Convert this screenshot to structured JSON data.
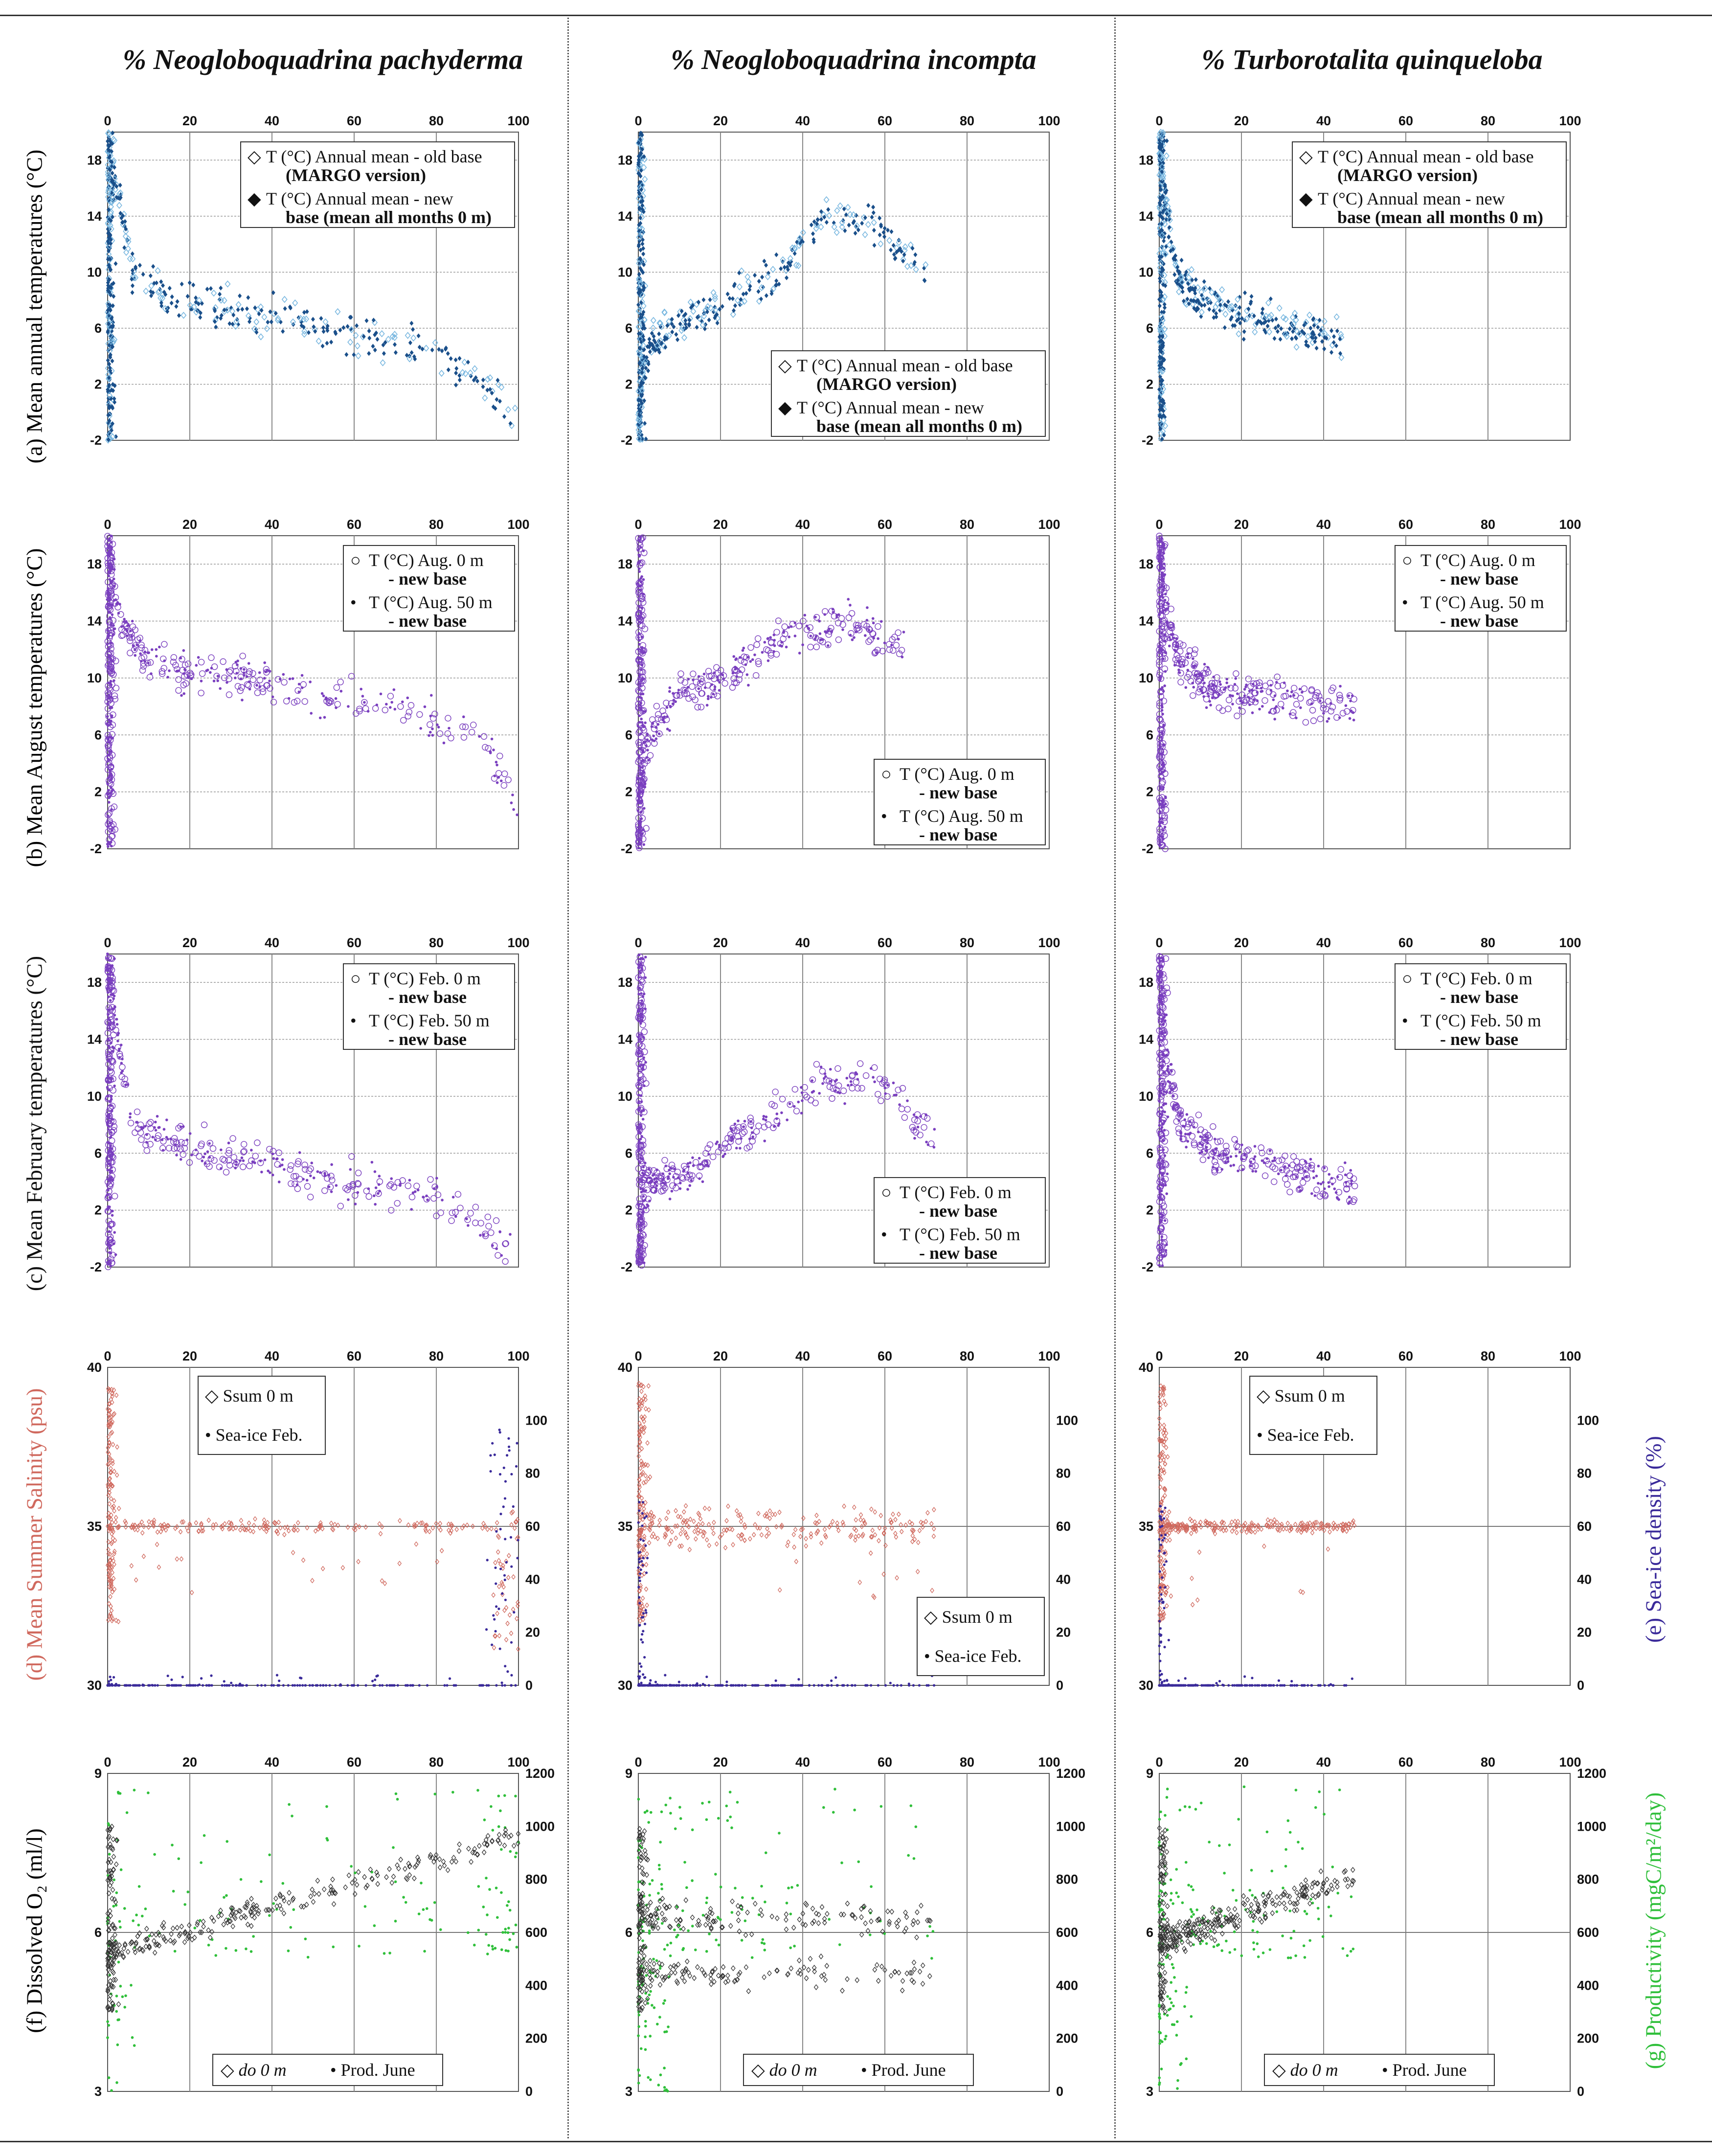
{
  "figure": {
    "columns": [
      "% Neogloboquadrina pachyderma",
      "% Neogloboquadrina incompta",
      "% Turborotalita quinqueloba"
    ],
    "row_labels": [
      "(a) Mean annual temperatures (°C)",
      "(b) Mean August temperatures (°C)",
      "(c) Mean February temperatures (°C)",
      "(d) Mean Summer Salinity (psu)",
      "(f) Dissolved O₂ (ml/l)"
    ],
    "right_labels": [
      "(e) Sea-ice density (%)",
      "(g) Productivity (mgC/m²/day)"
    ],
    "colors": {
      "annual_old": "#7ab8e0",
      "annual_new": "#1a4f8a",
      "purple": "#7a3fbf",
      "salinity": "#d0695e",
      "seaice": "#3a2a9a",
      "oxygen": "#333333",
      "productivity": "#2fbf3a",
      "band": "#e8e8e8"
    }
  },
  "chart_data": [
    {
      "type": "scatter",
      "row": "a",
      "title": "Mean annual temperatures",
      "xlabel": "%",
      "ylabel": "(a) Mean annual temperatures (°C)",
      "xlim": [
        0,
        100
      ],
      "ylim": [
        -2,
        20
      ],
      "xticks": [
        "0",
        "20",
        "40",
        "60",
        "80",
        "100"
      ],
      "yticks": [
        "-2",
        "2",
        "6",
        "10",
        "14",
        "18"
      ],
      "band": [
        6,
        10
      ],
      "legend": [
        {
          "symbol": "◇",
          "text": "T (°C) Annual mean - old base",
          "sub": "(MARGO version)"
        },
        {
          "symbol": "◆",
          "text": "T (°C)  Annual  mean - new",
          "sub": "base (mean all months  0 m)"
        }
      ],
      "series": [
        {
          "name": "T (°C) Annual mean - old base (MARGO version)",
          "color": "#7ab8e0"
        },
        {
          "name": "T (°C) Annual mean - new base (mean all months 0 m)",
          "color": "#1a4f8a"
        }
      ],
      "trends": [
        [
          [
            0,
            19
          ],
          [
            3,
            15
          ],
          [
            6,
            10
          ],
          [
            15,
            8
          ],
          [
            40,
            7
          ],
          [
            60,
            5.5
          ],
          [
            80,
            4.5
          ],
          [
            95,
            1
          ],
          [
            100,
            -1
          ]
        ],
        [
          [
            0,
            -1
          ],
          [
            1,
            3
          ],
          [
            3,
            5
          ],
          [
            8,
            6
          ],
          [
            20,
            7.5
          ],
          [
            35,
            10
          ],
          [
            45,
            14
          ],
          [
            55,
            14
          ],
          [
            70,
            10
          ]
        ],
        [
          [
            0,
            19
          ],
          [
            2,
            14
          ],
          [
            4,
            10
          ],
          [
            10,
            8
          ],
          [
            20,
            7
          ],
          [
            35,
            6
          ],
          [
            45,
            5
          ]
        ]
      ]
    },
    {
      "type": "scatter",
      "row": "b",
      "title": "Mean August temperatures",
      "xlabel": "%",
      "ylabel": "(b) Mean August temperatures (°C)",
      "xlim": [
        0,
        100
      ],
      "ylim": [
        -2,
        20
      ],
      "xticks": [
        "0",
        "20",
        "40",
        "60",
        "80",
        "100"
      ],
      "yticks": [
        "-2",
        "2",
        "6",
        "10",
        "14",
        "18"
      ],
      "band": [
        6,
        10
      ],
      "legend": [
        {
          "symbol": "○",
          "text": "T (°C) Aug. 0 m",
          "sub": "- new base"
        },
        {
          "symbol": "•",
          "text": "T (°C) Aug. 50 m",
          "sub": "- new base"
        }
      ],
      "series": [
        {
          "name": "T (°C) Aug. 0 m - new base",
          "color": "#7a3fbf"
        },
        {
          "name": "T (°C) Aug. 50 m - new base",
          "color": "#7a3fbf"
        }
      ],
      "trends": [
        [
          [
            0,
            19
          ],
          [
            3,
            14
          ],
          [
            10,
            11
          ],
          [
            30,
            10
          ],
          [
            50,
            9
          ],
          [
            70,
            8
          ],
          [
            90,
            6
          ],
          [
            100,
            1
          ]
        ],
        [
          [
            0,
            -1
          ],
          [
            1,
            3
          ],
          [
            3,
            6
          ],
          [
            10,
            9
          ],
          [
            20,
            10
          ],
          [
            35,
            13
          ],
          [
            50,
            14
          ],
          [
            65,
            12
          ]
        ],
        [
          [
            0,
            19
          ],
          [
            2,
            14
          ],
          [
            5,
            11
          ],
          [
            15,
            9
          ],
          [
            30,
            8.5
          ],
          [
            48,
            8
          ]
        ]
      ]
    },
    {
      "type": "scatter",
      "row": "c",
      "title": "Mean February temperatures",
      "xlabel": "%",
      "ylabel": "(c) Mean February temperatures (°C)",
      "xlim": [
        0,
        100
      ],
      "ylim": [
        -2,
        20
      ],
      "xticks": [
        "0",
        "20",
        "40",
        "60",
        "80",
        "100"
      ],
      "yticks": [
        "-2",
        "2",
        "6",
        "10",
        "14",
        "18"
      ],
      "band": [
        6,
        10
      ],
      "legend": [
        {
          "symbol": "○",
          "text": "T (°C) Feb. 0 m",
          "sub": "- new base"
        },
        {
          "symbol": "•",
          "text": "T (°C) Feb. 50 m",
          "sub": "- new base"
        }
      ],
      "series": [
        {
          "name": "T (°C) Feb. 0 m - new base",
          "color": "#7a3fbf"
        },
        {
          "name": "T (°C) Feb. 50 m - new base",
          "color": "#7a3fbf"
        }
      ],
      "trends": [
        [
          [
            0,
            19
          ],
          [
            3,
            13
          ],
          [
            6,
            8
          ],
          [
            20,
            6.5
          ],
          [
            40,
            5
          ],
          [
            60,
            4
          ],
          [
            80,
            3
          ],
          [
            95,
            0
          ],
          [
            100,
            -1
          ]
        ],
        [
          [
            0,
            -1
          ],
          [
            1,
            2
          ],
          [
            3,
            4
          ],
          [
            12,
            4.5
          ],
          [
            20,
            6.5
          ],
          [
            35,
            9
          ],
          [
            45,
            11
          ],
          [
            60,
            11
          ],
          [
            72,
            7
          ]
        ],
        [
          [
            0,
            19
          ],
          [
            2,
            12
          ],
          [
            5,
            8
          ],
          [
            15,
            6
          ],
          [
            30,
            5
          ],
          [
            48,
            3.5
          ]
        ]
      ]
    },
    {
      "type": "scatter",
      "row": "d-e",
      "title": "Mean Summer Salinity and Sea-ice density",
      "xlabel": "%",
      "ylabel": "(d) Mean Summer Salinity (psu)",
      "y2label": "(e) Sea-ice density (%)",
      "xlim": [
        0,
        100
      ],
      "ylim": [
        30,
        40
      ],
      "y2lim": [
        0,
        120
      ],
      "xticks": [
        "0",
        "20",
        "40",
        "60",
        "80",
        "100"
      ],
      "yticks": [
        "30",
        "35",
        "40"
      ],
      "y2ticks": [
        "0",
        "20",
        "40",
        "60",
        "80",
        "100"
      ],
      "legend": [
        {
          "symbol": "◇",
          "text": "Ssum 0 m"
        },
        {
          "symbol": "•",
          "text": "Sea-ice Feb."
        }
      ],
      "series": [
        {
          "name": "Ssum 0 m",
          "color": "#d0695e",
          "axis": "left"
        },
        {
          "name": "Sea-ice Feb.",
          "color": "#3a2a9a",
          "axis": "right"
        }
      ]
    },
    {
      "type": "scatter",
      "row": "f-g",
      "title": "Dissolved O2 and Productivity",
      "xlabel": "%",
      "ylabel": "(f) Dissolved O₂ (ml/l)",
      "y2label": "(g) Productivity (mgC/m²/day)",
      "xlim": [
        0,
        100
      ],
      "ylim": [
        3,
        9
      ],
      "y2lim": [
        0,
        1200
      ],
      "xticks": [
        "0",
        "20",
        "40",
        "60",
        "80",
        "100"
      ],
      "yticks": [
        "3",
        "6",
        "9"
      ],
      "y2ticks": [
        "0",
        "200",
        "400",
        "600",
        "800",
        "1000",
        "1200"
      ],
      "legend": [
        {
          "symbol": "◇",
          "text": "do 0 m"
        },
        {
          "symbol": "•",
          "text": "Prod. June"
        }
      ],
      "series": [
        {
          "name": "do 0 m",
          "color": "#333333",
          "axis": "left"
        },
        {
          "name": "Prod. June",
          "color": "#2fbf3a",
          "axis": "right"
        }
      ]
    }
  ]
}
